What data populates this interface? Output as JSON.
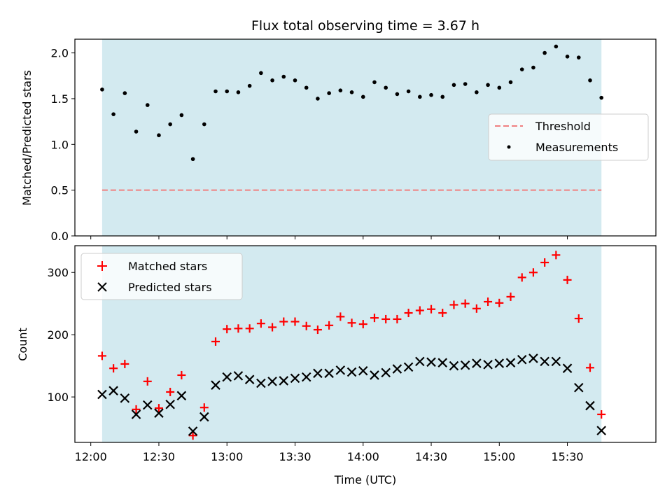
{
  "chart_data": [
    {
      "type": "scatter",
      "title": "Flux total observing time = 3.67 h",
      "xlabel": "",
      "ylabel": "Matched/Predicted stars",
      "ylim": [
        0,
        2.15
      ],
      "yticks": [
        "0.0",
        "0.5",
        "1.0",
        "1.5",
        "2.0"
      ],
      "xlim": [
        "11:53",
        "16:09"
      ],
      "shaded_range": [
        "12:05",
        "15:45"
      ],
      "shade_color": "#d3eaf0",
      "threshold": {
        "name": "Threshold",
        "value": 0.5,
        "color": "#f08080"
      },
      "legend": {
        "placement": "center-right",
        "items": [
          "Threshold",
          "Measurements"
        ]
      },
      "series": [
        {
          "name": "Measurements",
          "color": "#000000",
          "x": [
            "12:05",
            "12:10",
            "12:15",
            "12:20",
            "12:25",
            "12:30",
            "12:35",
            "12:40",
            "12:45",
            "12:50",
            "12:55",
            "13:00",
            "13:05",
            "13:10",
            "13:15",
            "13:20",
            "13:25",
            "13:30",
            "13:35",
            "13:40",
            "13:45",
            "13:50",
            "13:55",
            "14:00",
            "14:05",
            "14:10",
            "14:15",
            "14:20",
            "14:25",
            "14:30",
            "14:35",
            "14:40",
            "14:45",
            "14:50",
            "14:55",
            "15:00",
            "15:05",
            "15:10",
            "15:15",
            "15:20",
            "15:25",
            "15:30",
            "15:35",
            "15:40",
            "15:45"
          ],
          "y": [
            1.6,
            1.33,
            1.56,
            1.14,
            1.43,
            1.1,
            1.22,
            1.32,
            0.84,
            1.22,
            1.58,
            1.58,
            1.57,
            1.64,
            1.78,
            1.7,
            1.74,
            1.7,
            1.62,
            1.5,
            1.56,
            1.59,
            1.57,
            1.52,
            1.68,
            1.62,
            1.55,
            1.58,
            1.52,
            1.54,
            1.52,
            1.65,
            1.66,
            1.57,
            1.65,
            1.62,
            1.68,
            1.82,
            1.84,
            2.0,
            2.07,
            1.96,
            1.95,
            1.7,
            1.51
          ]
        }
      ]
    },
    {
      "type": "scatter",
      "title": "",
      "xlabel": "Time (UTC)",
      "ylabel": "Count",
      "ylim": [
        27,
        343
      ],
      "yticks": [
        "100",
        "200",
        "300"
      ],
      "xlim": [
        "11:53",
        "16:09"
      ],
      "xticks": [
        "12:00",
        "12:30",
        "13:00",
        "13:30",
        "14:00",
        "14:30",
        "15:00",
        "15:30"
      ],
      "shaded_range": [
        "12:05",
        "15:45"
      ],
      "shade_color": "#d3eaf0",
      "legend": {
        "placement": "top-left",
        "items": [
          "Matched stars",
          "Predicted stars"
        ]
      },
      "series": [
        {
          "name": "Matched stars",
          "color": "#ff0000",
          "x": [
            "12:05",
            "12:10",
            "12:15",
            "12:20",
            "12:25",
            "12:30",
            "12:35",
            "12:40",
            "12:45",
            "12:50",
            "12:55",
            "13:00",
            "13:05",
            "13:10",
            "13:15",
            "13:20",
            "13:25",
            "13:30",
            "13:35",
            "13:40",
            "13:45",
            "13:50",
            "13:55",
            "14:00",
            "14:05",
            "14:10",
            "14:15",
            "14:20",
            "14:25",
            "14:30",
            "14:35",
            "14:40",
            "14:45",
            "14:50",
            "14:55",
            "15:00",
            "15:05",
            "15:10",
            "15:15",
            "15:20",
            "15:25",
            "15:30",
            "15:35",
            "15:40",
            "15:45"
          ],
          "y": [
            166,
            146,
            153,
            80,
            125,
            82,
            108,
            135,
            38,
            83,
            189,
            209,
            210,
            210,
            218,
            212,
            221,
            221,
            214,
            208,
            215,
            229,
            219,
            217,
            227,
            225,
            225,
            235,
            239,
            241,
            235,
            248,
            250,
            242,
            253,
            251,
            261,
            292,
            300,
            316,
            328,
            288,
            226,
            147,
            72
          ]
        },
        {
          "name": "Predicted stars",
          "color": "#000000",
          "x": [
            "12:05",
            "12:10",
            "12:15",
            "12:20",
            "12:25",
            "12:30",
            "12:35",
            "12:40",
            "12:45",
            "12:50",
            "12:55",
            "13:00",
            "13:05",
            "13:10",
            "13:15",
            "13:20",
            "13:25",
            "13:30",
            "13:35",
            "13:40",
            "13:45",
            "13:50",
            "13:55",
            "14:00",
            "14:05",
            "14:10",
            "14:15",
            "14:20",
            "14:25",
            "14:30",
            "14:35",
            "14:40",
            "14:45",
            "14:50",
            "14:55",
            "15:00",
            "15:05",
            "15:10",
            "15:15",
            "15:20",
            "15:25",
            "15:30",
            "15:35",
            "15:40",
            "15:45"
          ],
          "y": [
            104,
            110,
            98,
            72,
            87,
            74,
            88,
            102,
            45,
            68,
            119,
            132,
            134,
            128,
            122,
            125,
            126,
            130,
            132,
            138,
            138,
            143,
            140,
            142,
            135,
            139,
            145,
            148,
            157,
            156,
            155,
            150,
            151,
            154,
            152,
            154,
            155,
            160,
            162,
            157,
            157,
            146,
            115,
            86,
            46
          ]
        }
      ]
    }
  ]
}
